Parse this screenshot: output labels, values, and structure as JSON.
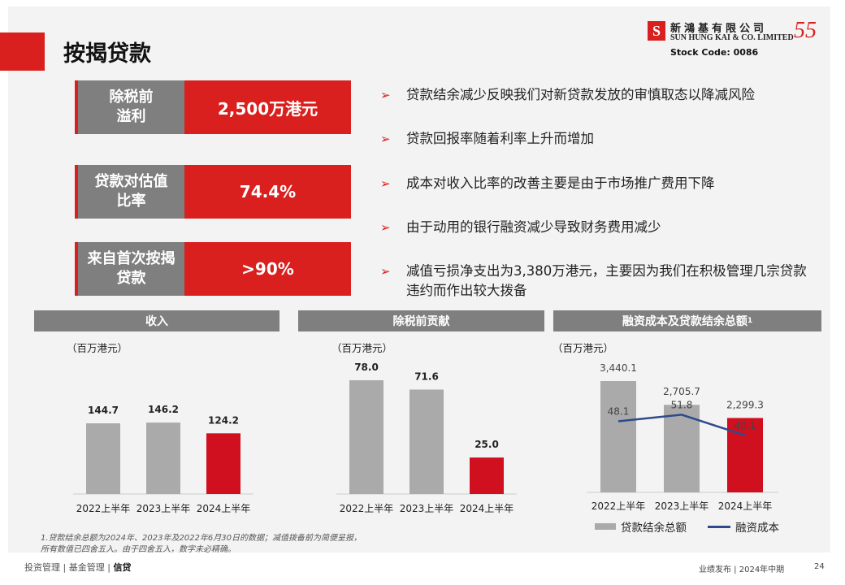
{
  "header": {
    "title": "按揭贷款",
    "logo": {
      "mark": "S",
      "cn_name": "新鴻基有限公司",
      "en_name": "SUN HUNG KAI & CO. LIMITED",
      "anniversary": "55",
      "stock_code": "Stock Code: 0086"
    }
  },
  "kpis": [
    {
      "label": "除税前\n溢利",
      "value": "2,500万港元"
    },
    {
      "label": "贷款对估值\n比率",
      "value": "74.4%"
    },
    {
      "label": "来自首次按揭\n贷款",
      "value": ">90%"
    }
  ],
  "bullets": [
    "贷款结余减少反映我们对新贷款发放的审慎取态以降减风险",
    "贷款回报率随着利率上升而增加",
    "成本对收入比率的改善主要是由于市场推广费用下降",
    "由于动用的银行融资减少导致财务费用减少",
    "减值亏损净支出为3,380万港元，主要因为我们在积极管理几宗贷款违约而作出较大拨备"
  ],
  "panels": [
    {
      "title": "收入",
      "unit": "（百万港元）"
    },
    {
      "title": "除税前贡献",
      "unit": "（百万港元）"
    },
    {
      "title": "融资成本及贷款结余总额",
      "title_sup": "1",
      "unit": "（百万港元）"
    }
  ],
  "chart_data": [
    {
      "type": "bar",
      "title": "收入",
      "categories": [
        "2022上半年",
        "2023上半年",
        "2024上半年"
      ],
      "values": [
        144.7,
        146.2,
        124.2
      ],
      "value_labels": [
        "144.7",
        "146.2",
        "124.2"
      ],
      "colors": [
        "#aaaaaa",
        "#aaaaaa",
        "#d0101f"
      ],
      "ylim": [
        0,
        160
      ]
    },
    {
      "type": "bar",
      "title": "除税前贡献",
      "categories": [
        "2022上半年",
        "2023上半年",
        "2024上半年"
      ],
      "values": [
        78.0,
        71.6,
        25.0
      ],
      "value_labels": [
        "78.0",
        "71.6",
        "25.0"
      ],
      "colors": [
        "#aaaaaa",
        "#aaaaaa",
        "#d0101f"
      ],
      "ylim": [
        0,
        85
      ]
    },
    {
      "type": "bar",
      "title": "融资成本及贷款结余总额",
      "categories": [
        "2022上半年",
        "2023上半年",
        "2024上半年"
      ],
      "series": [
        {
          "name": "贷款结余总额",
          "type": "bar",
          "values": [
            3440.1,
            2705.7,
            2299.3
          ],
          "labels": [
            "3,440.1",
            "2,705.7",
            "2,299.3"
          ],
          "color": "#aaaaaa"
        },
        {
          "name": "融资成本",
          "type": "line",
          "values": [
            48.1,
            51.8,
            40.1
          ],
          "labels": [
            "48.1",
            "51.8",
            "40.1"
          ],
          "color": "#2e4a8c"
        }
      ],
      "bar_colors": [
        "#aaaaaa",
        "#aaaaaa",
        "#d0101f"
      ],
      "legend": "bottom"
    }
  ],
  "legend": {
    "bar_label": "贷款结余总额",
    "line_label": "融资成本"
  },
  "footnote": "1.贷款结余总额为2024年、2023年及2022年6月30日的数据；减值拨备前为简便呈报，所有数值已四舍五入。由于四舍五入，数字未必精确。",
  "footer": {
    "nav": [
      "投资管理",
      "基金管理",
      "信贷"
    ],
    "separator": "|",
    "right_text": "业绩发布 | 2024年中期",
    "page_number": "24"
  }
}
